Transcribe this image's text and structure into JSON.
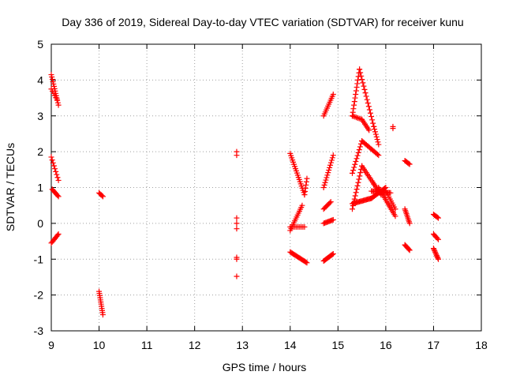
{
  "chart_data": {
    "type": "scatter",
    "title": "Day 336 of 2019, Sidereal Day-to-day VTEC variation (SDTVAR) for receiver kunu",
    "xlabel": "GPS time / hours",
    "ylabel": "SDTVAR / TECUs",
    "xlim": [
      9,
      18
    ],
    "ylim": [
      -3,
      5
    ],
    "xticks": [
      "9",
      "10",
      "11",
      "12",
      "13",
      "14",
      "15",
      "16",
      "17",
      "18"
    ],
    "yticks": [
      "-3",
      "-2",
      "-1",
      "0",
      "1",
      "2",
      "3",
      "4",
      "5"
    ],
    "grid": true,
    "marker": "+",
    "series_color": "#ff0000",
    "segments": [
      {
        "x0": 9.0,
        "x1": 9.15,
        "y0": 4.15,
        "y1": 3.3,
        "n": 14
      },
      {
        "x0": 9.0,
        "x1": 9.12,
        "y0": 3.75,
        "y1": 3.45,
        "n": 6
      },
      {
        "x0": 9.0,
        "x1": 9.15,
        "y0": 1.85,
        "y1": 1.2,
        "n": 9
      },
      {
        "x0": 9.02,
        "x1": 9.15,
        "y0": 0.95,
        "y1": 0.75,
        "n": 8
      },
      {
        "x0": 9.0,
        "x1": 9.15,
        "y0": -0.55,
        "y1": -0.3,
        "n": 9
      },
      {
        "x0": 10.0,
        "x1": 10.08,
        "y0": 0.85,
        "y1": 0.75,
        "n": 5
      },
      {
        "x0": 10.0,
        "x1": 10.08,
        "y0": -1.9,
        "y1": -2.55,
        "n": 12
      },
      {
        "x0": 12.88,
        "x1": 12.88,
        "y0": 2.0,
        "y1": 1.9,
        "n": 2
      },
      {
        "x0": 12.88,
        "x1": 12.88,
        "y0": 0.15,
        "y1": -0.15,
        "n": 3
      },
      {
        "x0": 12.88,
        "x1": 12.88,
        "y0": -0.95,
        "y1": -1.0,
        "n": 2
      },
      {
        "x0": 12.88,
        "x1": 12.88,
        "y0": -1.48,
        "y1": -1.48,
        "n": 1
      },
      {
        "x0": 14.0,
        "x1": 14.3,
        "y0": 1.95,
        "y1": 0.8,
        "n": 20
      },
      {
        "x0": 14.3,
        "x1": 14.35,
        "y0": 0.8,
        "y1": 1.25,
        "n": 6
      },
      {
        "x0": 14.0,
        "x1": 14.25,
        "y0": -0.2,
        "y1": 0.5,
        "n": 14
      },
      {
        "x0": 14.0,
        "x1": 14.35,
        "y0": -0.8,
        "y1": -1.1,
        "n": 18
      },
      {
        "x0": 14.0,
        "x1": 14.3,
        "y0": -0.1,
        "y1": -0.1,
        "n": 10
      },
      {
        "x0": 14.7,
        "x1": 14.9,
        "y0": 3.0,
        "y1": 3.6,
        "n": 12
      },
      {
        "x0": 14.7,
        "x1": 14.9,
        "y0": 1.0,
        "y1": 1.9,
        "n": 14
      },
      {
        "x0": 14.7,
        "x1": 14.85,
        "y0": 0.4,
        "y1": 0.6,
        "n": 8
      },
      {
        "x0": 14.7,
        "x1": 14.9,
        "y0": 0.0,
        "y1": 0.1,
        "n": 10
      },
      {
        "x0": 14.7,
        "x1": 14.9,
        "y0": -1.05,
        "y1": -0.85,
        "n": 12
      },
      {
        "x0": 15.3,
        "x1": 15.45,
        "y0": 3.0,
        "y1": 4.3,
        "n": 14
      },
      {
        "x0": 15.45,
        "x1": 15.75,
        "y0": 4.3,
        "y1": 2.7,
        "n": 18
      },
      {
        "x0": 15.75,
        "x1": 15.85,
        "y0": 2.7,
        "y1": 2.2,
        "n": 8
      },
      {
        "x0": 15.3,
        "x1": 15.5,
        "y0": 1.4,
        "y1": 2.3,
        "n": 12
      },
      {
        "x0": 15.5,
        "x1": 15.85,
        "y0": 2.3,
        "y1": 1.9,
        "n": 16
      },
      {
        "x0": 15.3,
        "x1": 15.5,
        "y0": 3.0,
        "y1": 2.9,
        "n": 8
      },
      {
        "x0": 15.5,
        "x1": 15.65,
        "y0": 2.9,
        "y1": 2.6,
        "n": 8
      },
      {
        "x0": 15.3,
        "x1": 15.5,
        "y0": 0.4,
        "y1": 1.6,
        "n": 14
      },
      {
        "x0": 15.5,
        "x1": 15.75,
        "y0": 1.6,
        "y1": 1.1,
        "n": 12
      },
      {
        "x0": 15.75,
        "x1": 15.9,
        "y0": 1.1,
        "y1": 0.8,
        "n": 8
      },
      {
        "x0": 15.3,
        "x1": 15.7,
        "y0": 0.55,
        "y1": 0.7,
        "n": 20
      },
      {
        "x0": 15.7,
        "x1": 16.0,
        "y0": 0.7,
        "y1": 1.0,
        "n": 16
      },
      {
        "x0": 15.7,
        "x1": 16.1,
        "y0": 0.9,
        "y1": 0.85,
        "n": 18
      },
      {
        "x0": 15.85,
        "x1": 16.2,
        "y0": 1.0,
        "y1": 0.2,
        "n": 18
      },
      {
        "x0": 16.0,
        "x1": 16.2,
        "y0": 0.9,
        "y1": 0.4,
        "n": 10
      },
      {
        "x0": 16.15,
        "x1": 16.15,
        "y0": 2.7,
        "y1": 2.65,
        "n": 2
      },
      {
        "x0": 16.4,
        "x1": 16.5,
        "y0": 1.75,
        "y1": 1.65,
        "n": 6
      },
      {
        "x0": 16.4,
        "x1": 16.5,
        "y0": 0.4,
        "y1": 0.0,
        "n": 10
      },
      {
        "x0": 16.4,
        "x1": 16.5,
        "y0": -0.6,
        "y1": -0.75,
        "n": 8
      },
      {
        "x0": 17.0,
        "x1": 17.1,
        "y0": 0.25,
        "y1": 0.15,
        "n": 6
      },
      {
        "x0": 17.0,
        "x1": 17.1,
        "y0": -0.3,
        "y1": -0.45,
        "n": 6
      },
      {
        "x0": 17.0,
        "x1": 17.1,
        "y0": -0.7,
        "y1": -1.0,
        "n": 10
      }
    ]
  }
}
